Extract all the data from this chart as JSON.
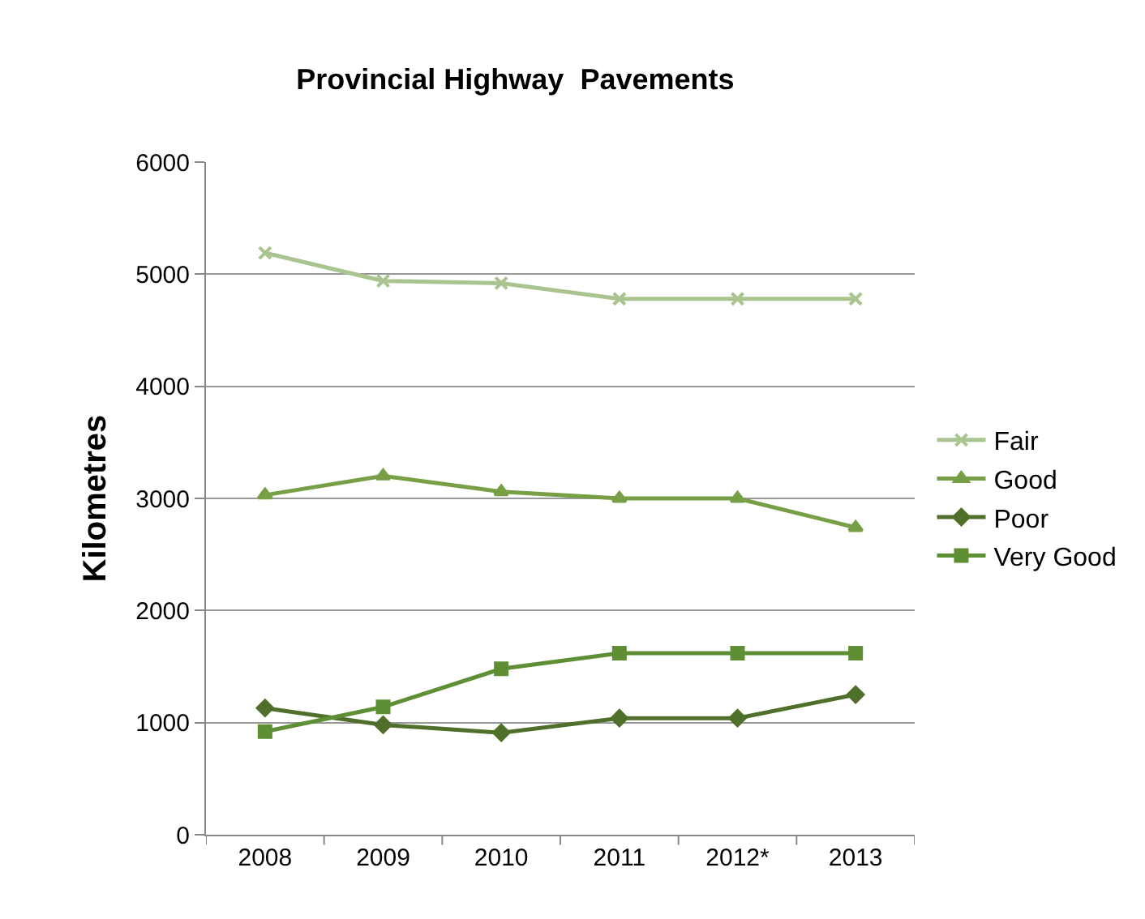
{
  "chart_data": {
    "type": "line",
    "title": "Provincial Highway  Pavements",
    "ylabel": "Kilometres",
    "categories": [
      "2008",
      "2009",
      "2010",
      "2011",
      "2012*",
      "2013"
    ],
    "series": [
      {
        "name": "Fair",
        "color": "#a9c48f",
        "marker": "cross",
        "values": [
          5190,
          4940,
          4920,
          4780,
          4780,
          4780
        ]
      },
      {
        "name": "Good",
        "color": "#77a046",
        "marker": "triangle",
        "values": [
          3030,
          3200,
          3060,
          3000,
          3000,
          2740
        ]
      },
      {
        "name": "Poor",
        "color": "#4f6f2a",
        "marker": "diamond",
        "values": [
          1130,
          980,
          910,
          1040,
          1040,
          1250
        ]
      },
      {
        "name": "Very Good",
        "color": "#5f8f35",
        "marker": "square",
        "values": [
          920,
          1140,
          1480,
          1620,
          1620,
          1620
        ]
      }
    ],
    "ylim": [
      0,
      6000
    ],
    "yticks": [
      0,
      1000,
      2000,
      3000,
      4000,
      5000,
      6000
    ],
    "grid": "y",
    "legend": "right",
    "line_style": "solid"
  }
}
